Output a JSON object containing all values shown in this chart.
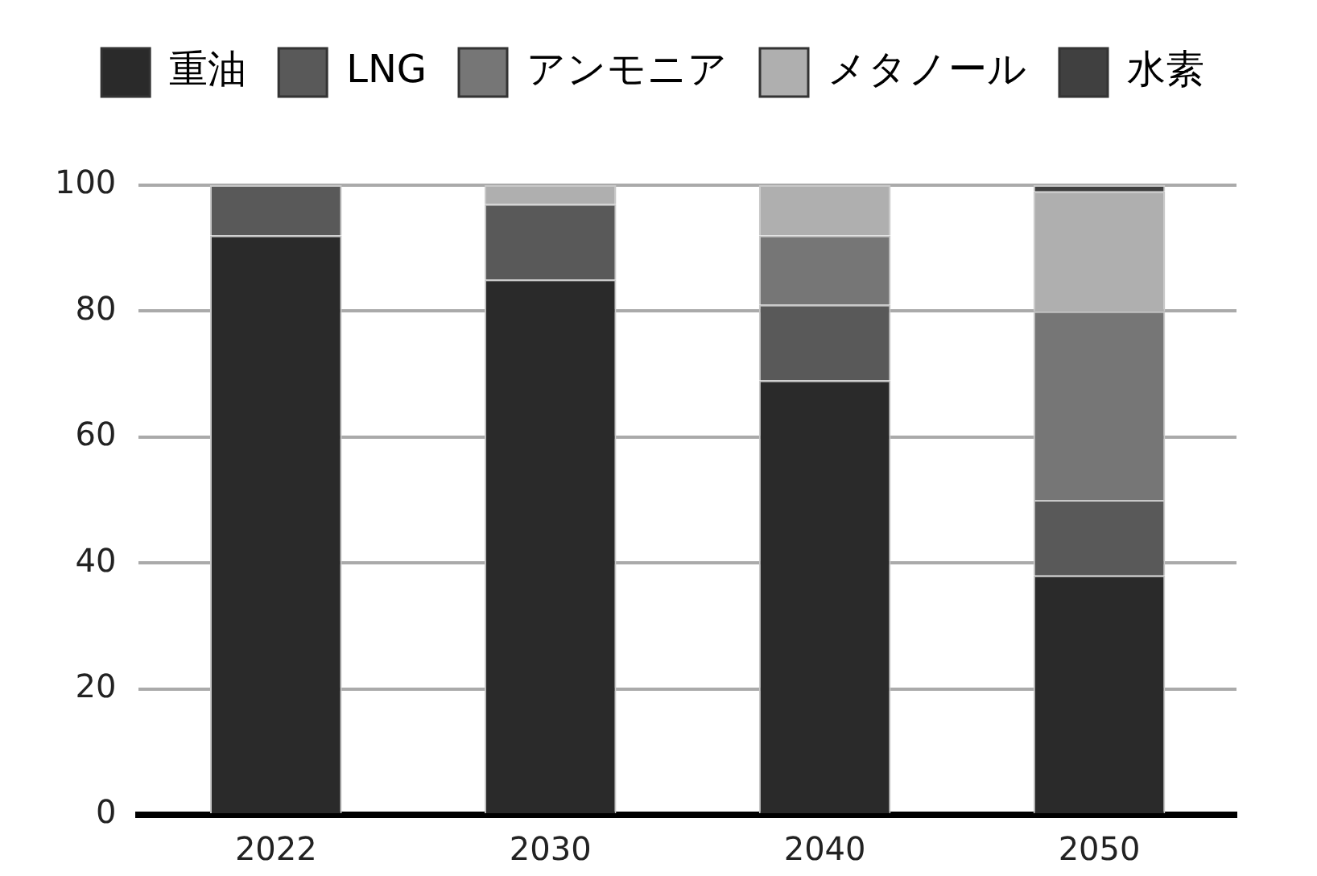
{
  "chart_data": {
    "type": "bar",
    "stacked": true,
    "categories": [
      "2022",
      "2030",
      "2040",
      "2050"
    ],
    "series": [
      {
        "name": "重油",
        "color": "#2a2a2a",
        "values": [
          92,
          85,
          69,
          38
        ]
      },
      {
        "name": "LNG",
        "color": "#595959",
        "values": [
          8,
          12,
          12,
          12
        ]
      },
      {
        "name": "アンモニア",
        "color": "#767676",
        "values": [
          0,
          0,
          11,
          30
        ]
      },
      {
        "name": "メタノール",
        "color": "#afafaf",
        "values": [
          0,
          3,
          8,
          19
        ]
      },
      {
        "name": "水素",
        "color": "#404040",
        "values": [
          0,
          0,
          0,
          1
        ]
      }
    ],
    "ylim": [
      0,
      100
    ],
    "yticks": [
      0,
      20,
      40,
      60,
      80,
      100
    ],
    "grid": "y",
    "legend": "top"
  }
}
